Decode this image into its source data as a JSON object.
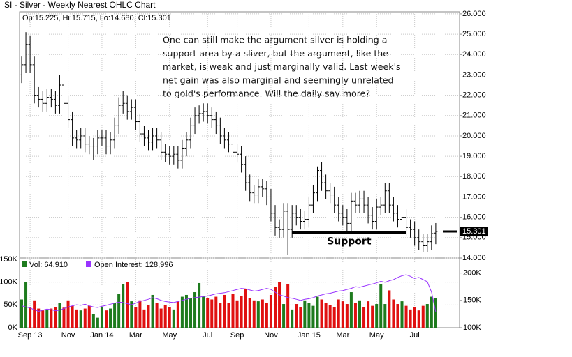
{
  "chart_data": {
    "type": "ohlc",
    "title": "SI - Silver - Weekly Nearest OHLC Chart",
    "header": "Op:15.225, Hi:15.715, Lo:14.680, Cl:15.301",
    "annotation": [
      "One can still make the argument silver is holding a",
      "support area by a sliver, but the argument, like the",
      "market, is weak and just marginally valid.  Last week's",
      "net gain was also marginal and seemingly unrelated",
      "to gold's performance.  Will the daily say more?"
    ],
    "categories": [
      null,
      null,
      "Sep 13",
      null,
      null,
      null,
      null,
      null,
      null,
      null,
      null,
      "Nov",
      null,
      null,
      null,
      null,
      null,
      null,
      null,
      "Jan 14",
      null,
      null,
      null,
      null,
      null,
      null,
      null,
      "Mar",
      null,
      null,
      null,
      null,
      null,
      null,
      null,
      "May",
      null,
      null,
      null,
      null,
      null,
      null,
      null,
      null,
      "Jul",
      null,
      null,
      null,
      null,
      null,
      null,
      "Sep",
      null,
      null,
      null,
      null,
      null,
      null,
      null,
      "Nov",
      null,
      null,
      null,
      null,
      null,
      null,
      null,
      null,
      "Jan 15",
      null,
      null,
      null,
      null,
      null,
      null,
      null,
      "Mar",
      null,
      null,
      null,
      null,
      null,
      null,
      null,
      "May",
      null,
      null,
      null,
      null,
      null,
      null,
      null,
      null,
      "Jul",
      null,
      null,
      null,
      null,
      null
    ],
    "open": [
      23.0,
      23.5,
      24.5,
      23.5,
      22.0,
      21.8,
      21.6,
      21.9,
      21.8,
      21.5,
      22.5,
      21.6,
      20.8,
      19.9,
      19.8,
      20.0,
      19.6,
      19.5,
      19.5,
      19.9,
      19.9,
      19.5,
      19.8,
      20.5,
      21.5,
      21.6,
      21.2,
      21.4,
      20.7,
      20.1,
      19.9,
      19.7,
      20.0,
      19.8,
      19.2,
      19.1,
      19.0,
      19.1,
      18.8,
      19.4,
      19.8,
      20.5,
      21.0,
      21.1,
      21.2,
      21.0,
      20.8,
      20.5,
      20.0,
      19.8,
      19.6,
      19.2,
      19.1,
      18.6,
      17.7,
      17.2,
      17.1,
      17.5,
      17.4,
      17.0,
      16.2,
      15.5,
      15.4,
      16.3,
      15.4,
      16.2,
      16.0,
      15.8,
      15.9,
      16.6,
      17.2,
      18.3,
      17.7,
      17.3,
      17.1,
      16.6,
      16.2,
      16.0,
      15.7,
      16.8,
      16.6,
      16.9,
      16.6,
      16.1,
      15.8,
      16.5,
      16.6,
      17.3,
      16.6,
      16.2,
      15.9,
      16.0,
      15.5,
      15.4,
      15.0,
      14.8,
      14.6,
      14.8,
      15.225
    ],
    "high": [
      23.9,
      25.1,
      24.9,
      23.9,
      22.4,
      22.2,
      22.3,
      22.3,
      22.2,
      23.0,
      22.9,
      22.0,
      21.2,
      20.3,
      20.4,
      20.4,
      20.0,
      19.9,
      20.3,
      20.3,
      20.3,
      20.2,
      20.9,
      21.9,
      22.2,
      22.0,
      21.8,
      21.8,
      21.1,
      20.5,
      20.3,
      20.4,
      20.4,
      20.2,
      19.6,
      19.5,
      19.5,
      19.5,
      19.8,
      20.2,
      20.9,
      21.4,
      21.5,
      21.6,
      21.6,
      21.4,
      21.2,
      20.9,
      20.4,
      20.2,
      20.0,
      19.6,
      19.5,
      19.0,
      18.1,
      17.6,
      17.9,
      17.9,
      17.8,
      17.4,
      16.6,
      15.9,
      16.7,
      16.7,
      16.6,
      16.6,
      16.4,
      16.3,
      17.0,
      17.6,
      18.5,
      18.7,
      18.1,
      17.7,
      17.5,
      17.0,
      16.6,
      16.4,
      17.2,
      17.2,
      17.3,
      17.3,
      17.0,
      16.5,
      16.9,
      17.0,
      17.7,
      17.7,
      17.0,
      16.6,
      16.4,
      16.4,
      15.9,
      15.8,
      15.4,
      15.2,
      15.2,
      15.6,
      15.715
    ],
    "low": [
      22.6,
      23.1,
      23.1,
      21.6,
      21.4,
      21.2,
      21.2,
      21.4,
      21.1,
      21.1,
      21.2,
      20.4,
      19.5,
      19.4,
      19.4,
      19.2,
      19.1,
      18.8,
      19.1,
      19.5,
      19.1,
      19.1,
      19.4,
      20.1,
      21.1,
      20.8,
      20.8,
      20.3,
      19.7,
      19.5,
      19.3,
      19.3,
      19.4,
      18.8,
      18.7,
      18.6,
      18.6,
      18.4,
      18.4,
      19.0,
      19.4,
      20.1,
      20.6,
      20.7,
      20.6,
      20.4,
      20.1,
      19.6,
      19.4,
      19.2,
      18.8,
      18.7,
      18.2,
      17.3,
      16.8,
      16.7,
      16.7,
      17.0,
      16.6,
      15.8,
      15.1,
      15.0,
      15.0,
      14.15,
      15.0,
      15.6,
      15.4,
      15.4,
      15.5,
      16.2,
      16.8,
      17.3,
      16.9,
      16.7,
      16.2,
      15.8,
      15.6,
      15.3,
      15.3,
      16.2,
      16.2,
      16.2,
      15.7,
      15.4,
      15.4,
      16.1,
      16.2,
      16.2,
      15.8,
      15.5,
      15.5,
      15.1,
      15.0,
      14.6,
      14.4,
      14.3,
      14.3,
      14.4,
      14.68
    ],
    "close": [
      23.5,
      24.5,
      23.5,
      22.0,
      21.8,
      21.6,
      21.9,
      21.8,
      21.5,
      22.5,
      21.6,
      20.8,
      19.9,
      19.8,
      20.0,
      19.6,
      19.5,
      19.5,
      19.9,
      19.9,
      19.5,
      19.8,
      20.5,
      21.5,
      21.6,
      21.2,
      21.4,
      20.7,
      20.1,
      19.9,
      19.7,
      20.0,
      19.8,
      19.2,
      19.1,
      19.0,
      19.1,
      18.8,
      19.4,
      19.8,
      20.5,
      21.0,
      21.1,
      21.2,
      21.0,
      20.8,
      20.5,
      20.0,
      19.8,
      19.6,
      19.2,
      19.1,
      18.6,
      17.7,
      17.2,
      17.1,
      17.5,
      17.4,
      17.0,
      16.2,
      15.5,
      15.4,
      16.3,
      15.4,
      16.2,
      16.0,
      15.8,
      15.9,
      16.6,
      17.2,
      18.3,
      17.7,
      17.3,
      17.1,
      16.6,
      16.2,
      16.0,
      15.7,
      16.8,
      16.6,
      16.9,
      16.6,
      16.1,
      15.8,
      16.5,
      16.6,
      17.3,
      16.6,
      16.2,
      15.9,
      16.0,
      15.5,
      15.4,
      15.0,
      14.8,
      14.6,
      14.8,
      15.2,
      15.301
    ],
    "color": "#000000",
    "ylim": [
      14,
      26.1
    ],
    "yticks": [
      {
        "value": 14,
        "label": "14.000"
      },
      {
        "value": 15,
        "label": "15.000"
      },
      {
        "value": 16,
        "label": "16.000"
      },
      {
        "value": 17,
        "label": "17.000"
      },
      {
        "value": 18,
        "label": "18.000"
      },
      {
        "value": 19,
        "label": "19.000"
      },
      {
        "value": 20,
        "label": "20.000"
      },
      {
        "value": 21,
        "label": "21.000"
      },
      {
        "value": 22,
        "label": "22.000"
      },
      {
        "value": 23,
        "label": "23.000"
      },
      {
        "value": 24,
        "label": "24.000"
      },
      {
        "value": 25,
        "label": "25.000"
      },
      {
        "value": 26,
        "label": "26.000"
      }
    ],
    "grid": true,
    "support": {
      "label": "Support",
      "value": 15.25,
      "from": 64,
      "to": 91
    },
    "volume": {
      "name": "Vol: 64,910",
      "color_up": "#1e7b1e",
      "color_down": "#e01010",
      "values": [
        62000,
        100000,
        45000,
        60000,
        42000,
        38000,
        40000,
        42000,
        45000,
        55000,
        44000,
        60000,
        48000,
        40000,
        38000,
        42000,
        48000,
        30000,
        22000,
        45000,
        38000,
        42000,
        55000,
        75000,
        95000,
        100000,
        58000,
        45000,
        60000,
        40000,
        50000,
        72000,
        55000,
        42000,
        50000,
        45000,
        40000,
        58000,
        68000,
        72000,
        65000,
        78000,
        98000,
        70000,
        65000,
        62000,
        68000,
        55000,
        72000,
        55000,
        75000,
        60000,
        70000,
        85000,
        65000,
        60000,
        58000,
        62000,
        55000,
        72000,
        90000,
        100000,
        52000,
        95000,
        40000,
        52000,
        45000,
        60000,
        55000,
        48000,
        68000,
        62000,
        55000,
        50000,
        45000,
        62000,
        58000,
        52000,
        78000,
        55000,
        60000,
        45000,
        58000,
        48000,
        52000,
        95000,
        52000,
        82000,
        62000,
        52000,
        58000,
        48000,
        40000,
        45000,
        38000,
        48000,
        52000,
        68000,
        64910
      ]
    },
    "vol_ylim": [
      0,
      150000
    ],
    "vol_yticks": [
      {
        "value": 0,
        "label": "0K"
      },
      {
        "value": 50000,
        "label": "50K"
      },
      {
        "value": 100000,
        "label": "100K"
      },
      {
        "value": 150000,
        "label": "150K"
      }
    ],
    "open_interest": {
      "name": "Open Interest: 128,996",
      "color": "#9933ff",
      "axis": "y2",
      "values": [
        140000,
        138000,
        136000,
        133000,
        130000,
        132000,
        134000,
        133000,
        131000,
        132000,
        135000,
        138000,
        140000,
        142000,
        141000,
        143000,
        140000,
        138000,
        137000,
        139000,
        141000,
        143000,
        145000,
        147000,
        146000,
        144000,
        142000,
        145000,
        148000,
        150000,
        152000,
        155000,
        153000,
        150000,
        148000,
        147000,
        146000,
        148000,
        150000,
        152000,
        154000,
        155000,
        156000,
        157000,
        158000,
        160000,
        162000,
        163000,
        164000,
        166000,
        168000,
        170000,
        172000,
        171000,
        169000,
        167000,
        168000,
        170000,
        172000,
        170000,
        165000,
        160000,
        158000,
        155000,
        154000,
        152000,
        150000,
        152000,
        153000,
        155000,
        158000,
        160000,
        162000,
        163000,
        165000,
        167000,
        168000,
        170000,
        172000,
        175000,
        174000,
        176000,
        178000,
        180000,
        182000,
        185000,
        183000,
        186000,
        188000,
        192000,
        195000,
        197000,
        194000,
        190000,
        192000,
        188000,
        184000,
        165000,
        128996
      ]
    },
    "y2lim": [
      100000,
      225000
    ],
    "y2ticks": [
      {
        "value": 100000,
        "label": "100K"
      },
      {
        "value": 150000,
        "label": "150K"
      },
      {
        "value": 200000,
        "label": "200K"
      }
    ]
  }
}
